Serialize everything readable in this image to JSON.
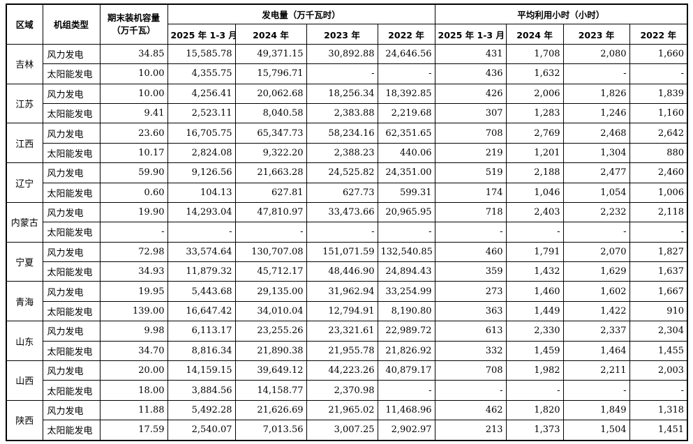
{
  "headers": {
    "region": "区域",
    "unit_type": "机组类型",
    "capacity": "期末装机容量（万千瓦）",
    "generation": "发电量（万千瓦时）",
    "avg_hours": "平均利用小时（小时）",
    "periods": [
      "2025 年 1-3 月",
      "2024 年",
      "2023 年",
      "2022 年"
    ]
  },
  "regions": [
    {
      "name": "吉林",
      "rows": [
        {
          "type": "风力发电",
          "capacity": "34.85",
          "gen": [
            "15,585.78",
            "49,371.15",
            "30,892.88",
            "24,646.56"
          ],
          "hours": [
            "431",
            "1,708",
            "2,080",
            "1,660"
          ]
        },
        {
          "type": "太阳能发电",
          "capacity": "10.00",
          "gen": [
            "4,355.75",
            "15,796.71",
            "-",
            "-"
          ],
          "hours": [
            "436",
            "1,632",
            "-",
            "-"
          ]
        }
      ]
    },
    {
      "name": "江苏",
      "rows": [
        {
          "type": "风力发电",
          "capacity": "10.00",
          "gen": [
            "4,256.41",
            "20,062.68",
            "18,256.34",
            "18,392.85"
          ],
          "hours": [
            "426",
            "2,006",
            "1,826",
            "1,839"
          ]
        },
        {
          "type": "太阳能发电",
          "capacity": "9.41",
          "gen": [
            "2,523.11",
            "8,040.58",
            "2,383.88",
            "2,219.68"
          ],
          "hours": [
            "307",
            "1,283",
            "1,246",
            "1,160"
          ]
        }
      ]
    },
    {
      "name": "江西",
      "rows": [
        {
          "type": "风力发电",
          "capacity": "23.60",
          "gen": [
            "16,705.75",
            "65,347.73",
            "58,234.16",
            "62,351.65"
          ],
          "hours": [
            "708",
            "2,769",
            "2,468",
            "2,642"
          ]
        },
        {
          "type": "太阳能发电",
          "capacity": "10.17",
          "gen": [
            "2,824.08",
            "9,322.20",
            "2,388.23",
            "440.06"
          ],
          "hours": [
            "219",
            "1,201",
            "1,304",
            "880"
          ]
        }
      ]
    },
    {
      "name": "辽宁",
      "rows": [
        {
          "type": "风力发电",
          "capacity": "59.90",
          "gen": [
            "9,126.56",
            "21,663.28",
            "24,525.82",
            "24,351.00"
          ],
          "hours": [
            "519",
            "2,188",
            "2,477",
            "2,460"
          ]
        },
        {
          "type": "太阳能发电",
          "capacity": "0.60",
          "gen": [
            "104.13",
            "627.81",
            "627.73",
            "599.31"
          ],
          "hours": [
            "174",
            "1,046",
            "1,054",
            "1,006"
          ]
        }
      ]
    },
    {
      "name": "内蒙古",
      "rows": [
        {
          "type": "风力发电",
          "capacity": "19.90",
          "gen": [
            "14,293.04",
            "47,810.97",
            "33,473.66",
            "20,965.95"
          ],
          "hours": [
            "718",
            "2,403",
            "2,232",
            "2,118"
          ]
        },
        {
          "type": "太阳能发电",
          "capacity": "-",
          "gen": [
            "-",
            "-",
            "-",
            "-"
          ],
          "hours": [
            "-",
            "-",
            "-",
            "-"
          ]
        }
      ]
    },
    {
      "name": "宁夏",
      "rows": [
        {
          "type": "风力发电",
          "capacity": "72.98",
          "gen": [
            "33,574.64",
            "130,707.08",
            "151,071.59",
            "132,540.85"
          ],
          "hours": [
            "460",
            "1,791",
            "2,070",
            "1,827"
          ]
        },
        {
          "type": "太阳能发电",
          "capacity": "34.93",
          "gen": [
            "11,879.32",
            "45,712.17",
            "48,446.90",
            "24,894.43"
          ],
          "hours": [
            "359",
            "1,432",
            "1,629",
            "1,637"
          ]
        }
      ]
    },
    {
      "name": "青海",
      "rows": [
        {
          "type": "风力发电",
          "capacity": "19.95",
          "gen": [
            "5,443.68",
            "29,135.00",
            "31,962.94",
            "33,254.99"
          ],
          "hours": [
            "273",
            "1,460",
            "1,602",
            "1,667"
          ]
        },
        {
          "type": "太阳能发电",
          "capacity": "139.00",
          "gen": [
            "16,647.42",
            "34,010.04",
            "12,794.91",
            "8,190.80"
          ],
          "hours": [
            "363",
            "1,449",
            "1,422",
            "910"
          ]
        }
      ]
    },
    {
      "name": "山东",
      "rows": [
        {
          "type": "风力发电",
          "capacity": "9.98",
          "gen": [
            "6,113.17",
            "23,255.26",
            "23,321.61",
            "22,989.72"
          ],
          "hours": [
            "613",
            "2,330",
            "2,337",
            "2,304"
          ]
        },
        {
          "type": "太阳能发电",
          "capacity": "34.70",
          "gen": [
            "8,816.34",
            "21,890.38",
            "21,955.78",
            "21,826.92"
          ],
          "hours": [
            "332",
            "1,459",
            "1,464",
            "1,455"
          ]
        }
      ]
    },
    {
      "name": "山西",
      "rows": [
        {
          "type": "风力发电",
          "capacity": "20.00",
          "gen": [
            "14,159.15",
            "39,649.12",
            "44,223.26",
            "40,879.17"
          ],
          "hours": [
            "708",
            "1,982",
            "2,211",
            "2,003"
          ]
        },
        {
          "type": "太阳能发电",
          "capacity": "18.00",
          "gen": [
            "3,884.56",
            "14,158.77",
            "2,370.98",
            "-"
          ],
          "hours": [
            "-",
            "-",
            "-",
            "-"
          ]
        }
      ]
    },
    {
      "name": "陕西",
      "rows": [
        {
          "type": "风力发电",
          "capacity": "11.88",
          "gen": [
            "5,492.28",
            "21,626.69",
            "21,965.02",
            "11,468.96"
          ],
          "hours": [
            "462",
            "1,820",
            "1,849",
            "1,318"
          ]
        },
        {
          "type": "太阳能发电",
          "capacity": "17.59",
          "gen": [
            "2,540.07",
            "7,013.56",
            "3,007.25",
            "2,902.97"
          ],
          "hours": [
            "213",
            "1,373",
            "1,504",
            "1,451"
          ]
        }
      ]
    }
  ]
}
